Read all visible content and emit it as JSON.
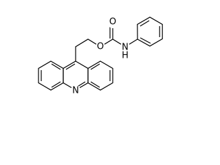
{
  "labels": [
    "O",
    "O",
    "N",
    "H",
    "N"
  ]
}
